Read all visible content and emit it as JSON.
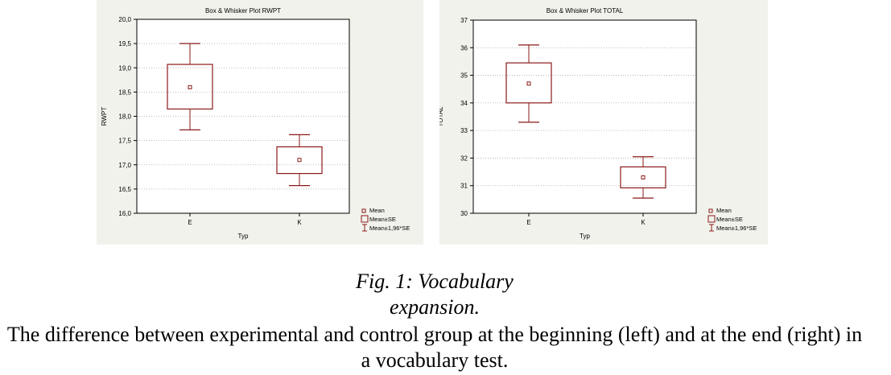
{
  "chart_data": [
    {
      "type": "box",
      "title": "Box & Whisker Plot   RWPT",
      "xlabel": "Typ",
      "ylabel": "RWPT",
      "ylim": [
        16.0,
        20.0
      ],
      "yticks": [
        "16,0",
        "16,5",
        "17,0",
        "17,5",
        "18,0",
        "18,5",
        "19,0",
        "19,5",
        "20,0"
      ],
      "categories": [
        "E",
        "K"
      ],
      "series": [
        {
          "category": "E",
          "mean": 18.6,
          "se_low": 18.15,
          "se_high": 19.07,
          "ci_low": 17.72,
          "ci_high": 19.5
        },
        {
          "category": "K",
          "mean": 17.1,
          "se_low": 16.82,
          "se_high": 17.37,
          "ci_low": 16.57,
          "ci_high": 17.62
        }
      ],
      "legend": [
        "Mean",
        "Mean±SE",
        "Mean±1,96*SE"
      ],
      "legend_position": "bottom-right",
      "grid": "dotted-horizontal"
    },
    {
      "type": "box",
      "title": "Box & Whisker Plot   TOTAL",
      "xlabel": "Typ",
      "ylabel": "TOTAL",
      "ylim": [
        30,
        37
      ],
      "yticks": [
        "30",
        "31",
        "32",
        "33",
        "34",
        "35",
        "36",
        "37"
      ],
      "categories": [
        "E",
        "K"
      ],
      "series": [
        {
          "category": "E",
          "mean": 34.7,
          "se_low": 34.0,
          "se_high": 35.45,
          "ci_low": 33.3,
          "ci_high": 36.1
        },
        {
          "category": "K",
          "mean": 31.3,
          "se_low": 30.92,
          "se_high": 31.68,
          "ci_low": 30.55,
          "ci_high": 32.05
        }
      ],
      "legend": [
        "Mean",
        "Mean±SE",
        "Mean±1,96*SE"
      ],
      "legend_position": "bottom-right",
      "grid": "dotted-horizontal"
    }
  ],
  "caption": {
    "title_line1": "Fig. 1: Vocabulary",
    "title_line2": "expansion.",
    "body": "The difference between experimental and control group at the beginning (left) and at the end (right) in a vocabulary test."
  },
  "colors": {
    "box": "#8b1a1a",
    "panel_bg": "#f2f2ec",
    "grid": "#aaaaaa",
    "axis": "#000000"
  }
}
